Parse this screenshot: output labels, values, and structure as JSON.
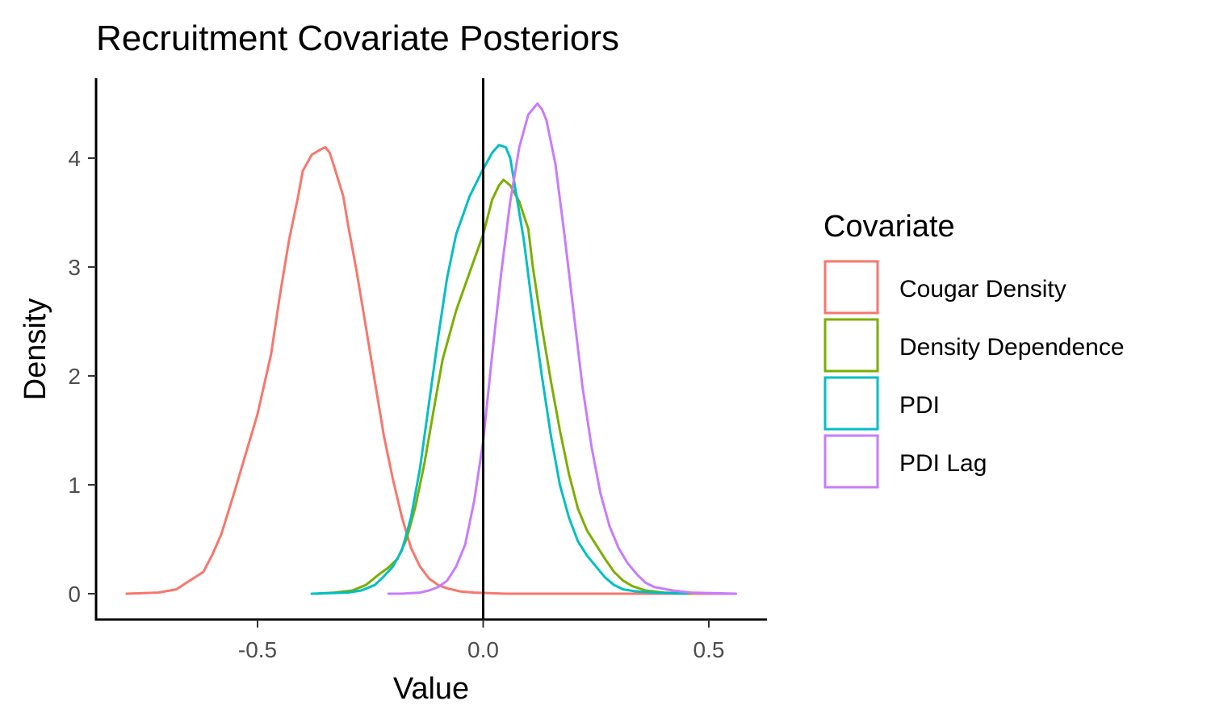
{
  "chart_data": {
    "type": "line",
    "title": "Recruitment Covariate Posteriors",
    "xlabel": "Value",
    "ylabel": "Density",
    "xlim": [
      -0.85,
      0.62
    ],
    "ylim": [
      -0.2,
      4.7
    ],
    "x_ticks": [
      -0.5,
      0.0,
      0.5
    ],
    "x_tick_labels": [
      "-0.5",
      "0.0",
      "0.5"
    ],
    "y_ticks": [
      0,
      1,
      2,
      3,
      4
    ],
    "y_tick_labels": [
      "0",
      "1",
      "2",
      "3",
      "4"
    ],
    "vline_x": 0.0,
    "grid": false,
    "legend_title": "Covariate",
    "legend_position": "right",
    "series": [
      {
        "name": "Cougar Density",
        "color": "#F8766D",
        "points": [
          [
            -0.79,
            0.0
          ],
          [
            -0.72,
            0.01
          ],
          [
            -0.68,
            0.04
          ],
          [
            -0.65,
            0.12
          ],
          [
            -0.62,
            0.2
          ],
          [
            -0.6,
            0.36
          ],
          [
            -0.58,
            0.55
          ],
          [
            -0.55,
            0.95
          ],
          [
            -0.5,
            1.65
          ],
          [
            -0.47,
            2.2
          ],
          [
            -0.45,
            2.75
          ],
          [
            -0.43,
            3.25
          ],
          [
            -0.41,
            3.65
          ],
          [
            -0.4,
            3.88
          ],
          [
            -0.38,
            4.03
          ],
          [
            -0.36,
            4.08
          ],
          [
            -0.35,
            4.1
          ],
          [
            -0.34,
            4.05
          ],
          [
            -0.33,
            3.92
          ],
          [
            -0.31,
            3.65
          ],
          [
            -0.3,
            3.4
          ],
          [
            -0.28,
            2.95
          ],
          [
            -0.26,
            2.45
          ],
          [
            -0.24,
            1.95
          ],
          [
            -0.22,
            1.45
          ],
          [
            -0.2,
            1.05
          ],
          [
            -0.18,
            0.7
          ],
          [
            -0.16,
            0.42
          ],
          [
            -0.14,
            0.25
          ],
          [
            -0.12,
            0.14
          ],
          [
            -0.1,
            0.08
          ],
          [
            -0.08,
            0.05
          ],
          [
            -0.05,
            0.02
          ],
          [
            -0.02,
            0.01
          ],
          [
            0.05,
            0.0
          ],
          [
            0.56,
            0.0
          ]
        ]
      },
      {
        "name": "Density Dependence",
        "color": "#7CAE00",
        "points": [
          [
            -0.37,
            0.0
          ],
          [
            -0.33,
            0.01
          ],
          [
            -0.29,
            0.03
          ],
          [
            -0.26,
            0.08
          ],
          [
            -0.23,
            0.18
          ],
          [
            -0.21,
            0.24
          ],
          [
            -0.19,
            0.32
          ],
          [
            -0.17,
            0.5
          ],
          [
            -0.15,
            0.8
          ],
          [
            -0.13,
            1.2
          ],
          [
            -0.11,
            1.68
          ],
          [
            -0.09,
            2.15
          ],
          [
            -0.06,
            2.6
          ],
          [
            -0.03,
            2.95
          ],
          [
            0.0,
            3.3
          ],
          [
            0.02,
            3.62
          ],
          [
            0.035,
            3.75
          ],
          [
            0.045,
            3.8
          ],
          [
            0.06,
            3.75
          ],
          [
            0.08,
            3.6
          ],
          [
            0.1,
            3.35
          ],
          [
            0.11,
            3.0
          ],
          [
            0.13,
            2.45
          ],
          [
            0.15,
            1.95
          ],
          [
            0.17,
            1.5
          ],
          [
            0.19,
            1.1
          ],
          [
            0.21,
            0.78
          ],
          [
            0.23,
            0.58
          ],
          [
            0.25,
            0.45
          ],
          [
            0.27,
            0.32
          ],
          [
            0.29,
            0.2
          ],
          [
            0.31,
            0.12
          ],
          [
            0.33,
            0.07
          ],
          [
            0.36,
            0.03
          ],
          [
            0.4,
            0.01
          ],
          [
            0.46,
            0.0
          ]
        ]
      },
      {
        "name": "PDI",
        "color": "#00BFC4",
        "points": [
          [
            -0.38,
            0.0
          ],
          [
            -0.3,
            0.01
          ],
          [
            -0.27,
            0.03
          ],
          [
            -0.24,
            0.08
          ],
          [
            -0.22,
            0.16
          ],
          [
            -0.2,
            0.25
          ],
          [
            -0.18,
            0.4
          ],
          [
            -0.16,
            0.7
          ],
          [
            -0.14,
            1.15
          ],
          [
            -0.12,
            1.75
          ],
          [
            -0.1,
            2.35
          ],
          [
            -0.08,
            2.9
          ],
          [
            -0.06,
            3.3
          ],
          [
            -0.03,
            3.65
          ],
          [
            0.0,
            3.9
          ],
          [
            0.02,
            4.05
          ],
          [
            0.035,
            4.12
          ],
          [
            0.05,
            4.1
          ],
          [
            0.06,
            4.0
          ],
          [
            0.07,
            3.75
          ],
          [
            0.09,
            3.25
          ],
          [
            0.11,
            2.6
          ],
          [
            0.13,
            2.0
          ],
          [
            0.15,
            1.45
          ],
          [
            0.17,
            1.0
          ],
          [
            0.19,
            0.7
          ],
          [
            0.21,
            0.48
          ],
          [
            0.23,
            0.35
          ],
          [
            0.25,
            0.25
          ],
          [
            0.27,
            0.15
          ],
          [
            0.29,
            0.08
          ],
          [
            0.31,
            0.04
          ],
          [
            0.34,
            0.02
          ],
          [
            0.38,
            0.01
          ],
          [
            0.45,
            0.0
          ]
        ]
      },
      {
        "name": "PDI Lag",
        "color": "#C77CFF",
        "points": [
          [
            -0.21,
            0.0
          ],
          [
            -0.18,
            0.0
          ],
          [
            -0.14,
            0.01
          ],
          [
            -0.12,
            0.03
          ],
          [
            -0.1,
            0.06
          ],
          [
            -0.08,
            0.12
          ],
          [
            -0.06,
            0.25
          ],
          [
            -0.04,
            0.45
          ],
          [
            -0.02,
            0.85
          ],
          [
            0.0,
            1.4
          ],
          [
            0.02,
            2.2
          ],
          [
            0.04,
            2.95
          ],
          [
            0.06,
            3.6
          ],
          [
            0.08,
            4.1
          ],
          [
            0.1,
            4.4
          ],
          [
            0.12,
            4.5
          ],
          [
            0.13,
            4.45
          ],
          [
            0.14,
            4.35
          ],
          [
            0.16,
            3.95
          ],
          [
            0.18,
            3.3
          ],
          [
            0.2,
            2.6
          ],
          [
            0.22,
            1.9
          ],
          [
            0.24,
            1.35
          ],
          [
            0.26,
            0.92
          ],
          [
            0.28,
            0.62
          ],
          [
            0.3,
            0.42
          ],
          [
            0.32,
            0.28
          ],
          [
            0.34,
            0.18
          ],
          [
            0.36,
            0.1
          ],
          [
            0.38,
            0.06
          ],
          [
            0.42,
            0.03
          ],
          [
            0.46,
            0.01
          ],
          [
            0.56,
            0.0
          ]
        ]
      }
    ]
  }
}
